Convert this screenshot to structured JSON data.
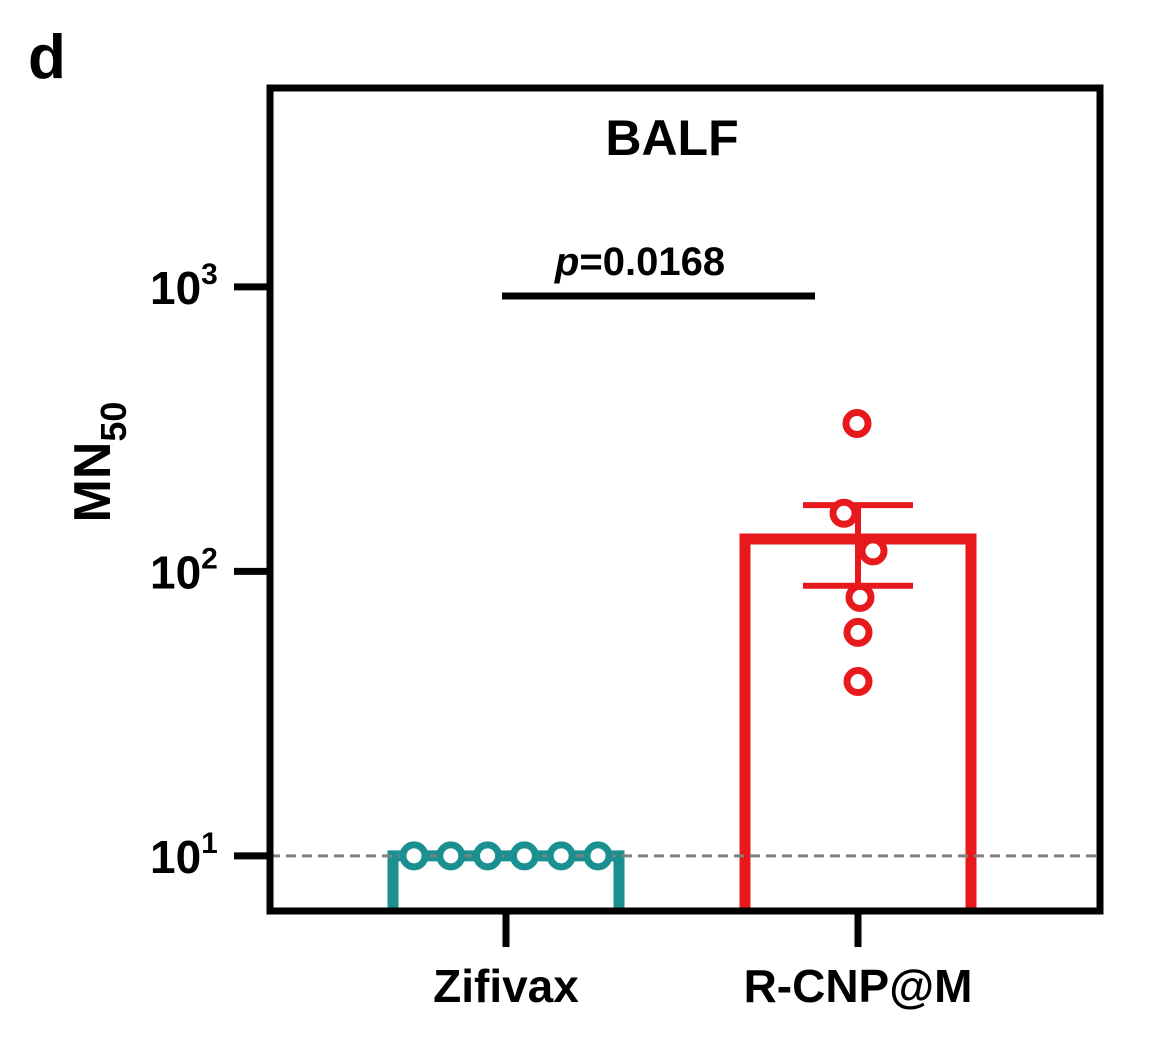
{
  "panel_label": "d",
  "chart_data": {
    "type": "bar",
    "title": "BALF",
    "ylabel_main": "MN",
    "ylabel_sub": "50",
    "y_scale": "log",
    "ylim": [
      6.4,
      5000
    ],
    "y_ticks": [
      {
        "value": 10,
        "base": "10",
        "exp": "1"
      },
      {
        "value": 100,
        "base": "10",
        "exp": "2"
      },
      {
        "value": 1000,
        "base": "10",
        "exp": "3"
      }
    ],
    "categories": [
      "Zifivax",
      "R-CNP@M"
    ],
    "series": [
      {
        "category": "Zifivax",
        "color": "#1a9090",
        "mean": 10,
        "error": [
          10,
          10
        ],
        "points": [
          10,
          10,
          10,
          10,
          10,
          10
        ]
      },
      {
        "category": "R-CNP@M",
        "color": "#e8191c",
        "mean": 130,
        "error": [
          89,
          171
        ],
        "points": [
          331,
          160,
          118,
          81,
          61,
          41
        ]
      }
    ],
    "significance": {
      "label_italic": "p",
      "label_rest": "=0.0168",
      "between": [
        "Zifivax",
        "R-CNP@M"
      ]
    },
    "reference_line": {
      "value": 10,
      "color": "#808080",
      "style": "dashed"
    }
  }
}
